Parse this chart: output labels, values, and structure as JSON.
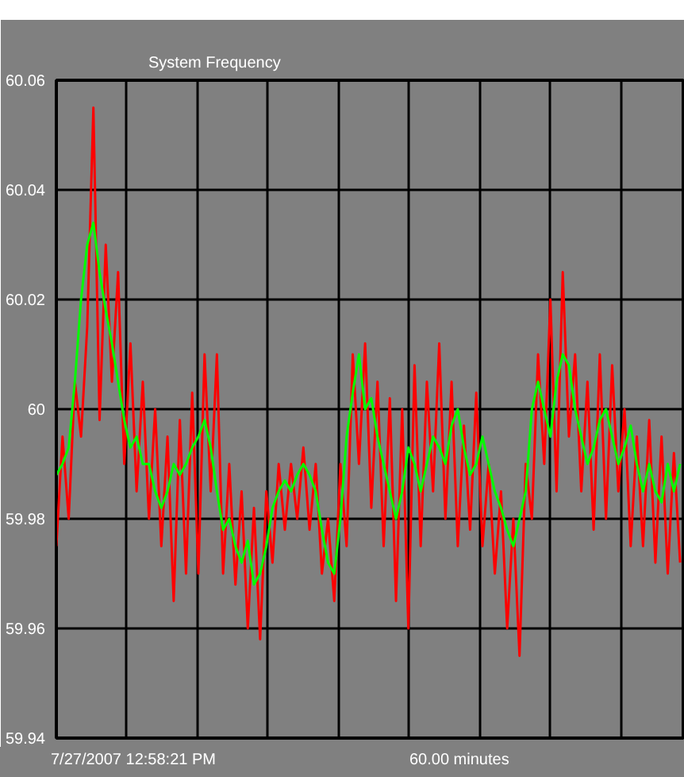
{
  "chart_data": {
    "type": "line",
    "title": "System Frequency",
    "annotations": [
      "7/27/2007 12:58:21 PM",
      "60.00 minutes"
    ],
    "categories": [
      null,
      null,
      null,
      null,
      null,
      null,
      null,
      null,
      null,
      null,
      null,
      null,
      null,
      null,
      null,
      null,
      null,
      null,
      null,
      null,
      null,
      null,
      null,
      null,
      null,
      null,
      null,
      null,
      null,
      null,
      null,
      null,
      null,
      null,
      null,
      null,
      null,
      null,
      null,
      null,
      null,
      null,
      null,
      null,
      null,
      null,
      null,
      null,
      null,
      null,
      null,
      null,
      null,
      null,
      null,
      null,
      null,
      null,
      null,
      null,
      null,
      null,
      null,
      null,
      null,
      null,
      null,
      null,
      null,
      null,
      null,
      null,
      null,
      null,
      null,
      null,
      null,
      null,
      null,
      null,
      null,
      null,
      null,
      null,
      null,
      null,
      null,
      null,
      null,
      null,
      null,
      null,
      null,
      null,
      null,
      null,
      null,
      null,
      null,
      null,
      null,
      null
    ],
    "ylim": [
      59.94,
      60.06
    ],
    "yticks": [
      59.94,
      59.96,
      59.98,
      60,
      60.02,
      60.04,
      60.06
    ],
    "tick_labels": "y",
    "grid": true,
    "line_style": "solid",
    "series": [
      {
        "color": "#ff0000",
        "values": [
          59.975,
          59.995,
          59.98,
          60.005,
          59.995,
          60.015,
          60.055,
          59.998,
          60.03,
          60.005,
          60.025,
          59.99,
          60.012,
          59.985,
          60.005,
          59.98,
          60.0,
          59.975,
          59.995,
          59.965,
          59.998,
          59.97,
          60.003,
          59.97,
          60.01,
          59.985,
          60.01,
          59.97,
          59.99,
          59.968,
          59.985,
          59.96,
          59.982,
          59.958,
          59.985,
          59.972,
          59.99,
          59.978,
          59.99,
          59.98,
          59.993,
          59.978,
          59.99,
          59.97,
          59.98,
          59.965,
          59.99,
          59.975,
          60.01,
          59.99,
          60.012,
          59.982,
          60.005,
          59.975,
          60.002,
          59.965,
          60.0,
          59.96,
          60.008,
          59.975,
          60.005,
          59.985,
          60.012,
          59.98,
          60.005,
          59.975,
          59.997,
          59.978,
          60.003,
          59.975,
          59.99,
          59.97,
          59.985,
          59.96,
          59.98,
          59.955,
          59.99,
          59.98,
          60.01,
          59.99,
          60.02,
          59.985,
          60.025,
          59.995,
          60.01,
          59.985,
          60.005,
          59.978,
          60.01,
          59.98,
          60.008,
          59.985,
          60.0,
          59.975,
          59.995,
          59.975,
          59.998,
          59.972,
          59.995,
          59.97,
          59.992,
          59.972
        ]
      },
      {
        "color": "#00ff00",
        "values": [
          59.988,
          59.99,
          59.993,
          60.005,
          60.02,
          60.03,
          60.034,
          60.025,
          60.018,
          60.012,
          60.005,
          59.998,
          59.993,
          59.995,
          59.99,
          59.99,
          59.985,
          59.982,
          59.985,
          59.99,
          59.988,
          59.99,
          59.993,
          59.995,
          59.998,
          59.993,
          59.985,
          59.978,
          59.98,
          59.975,
          59.972,
          59.976,
          59.968,
          59.97,
          59.975,
          59.982,
          59.985,
          59.987,
          59.985,
          59.988,
          59.99,
          59.988,
          59.985,
          59.978,
          59.972,
          59.97,
          59.98,
          59.995,
          60.003,
          60.01,
          60.0,
          60.002,
          59.995,
          59.99,
          59.985,
          59.98,
          59.985,
          59.993,
          59.99,
          59.985,
          59.99,
          59.995,
          59.993,
          59.99,
          59.997,
          60.0,
          59.993,
          59.988,
          59.99,
          59.995,
          59.99,
          59.985,
          59.982,
          59.978,
          59.975,
          59.98,
          59.985,
          60.0,
          60.005,
          60.0,
          59.995,
          60.005,
          60.01,
          60.008,
          60.0,
          59.995,
          59.99,
          59.993,
          59.998,
          60.0,
          59.995,
          59.99,
          59.993,
          59.997,
          59.99,
          59.985,
          59.99,
          59.985,
          59.983,
          59.99,
          59.985,
          59.99
        ]
      }
    ]
  }
}
